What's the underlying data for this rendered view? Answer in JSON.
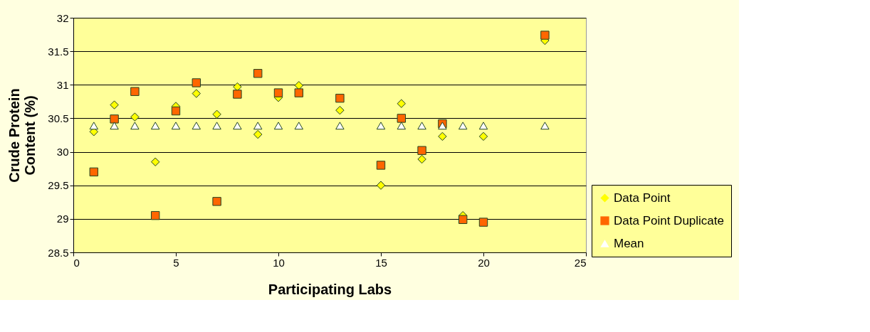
{
  "chart_data": {
    "type": "scatter",
    "xlabel": "Participating Labs",
    "ylabel": "Crude Protein Content (%)",
    "xlim": [
      0,
      25
    ],
    "xticks": [
      0,
      5,
      10,
      15,
      20,
      25
    ],
    "ylim": [
      28.5,
      32
    ],
    "yticks": [
      28.5,
      29,
      29.5,
      30,
      30.5,
      31,
      31.5,
      32
    ],
    "grid": "y",
    "legend": "bottom right",
    "series": [
      {
        "name": "Data Point",
        "color": "#ffff00",
        "marker": "diamond",
        "x": [
          1,
          2,
          3,
          4,
          5,
          6,
          7,
          8,
          9,
          10,
          11,
          13,
          15,
          16,
          17,
          18,
          19,
          20,
          23
        ],
        "values": [
          30.3,
          30.7,
          30.52,
          29.85,
          30.68,
          30.87,
          30.56,
          30.97,
          30.26,
          30.81,
          30.99,
          30.62,
          29.5,
          30.72,
          29.89,
          30.23,
          29.05,
          30.23,
          31.66
        ]
      },
      {
        "name": "Data Point Duplicate",
        "color": "#ff6600",
        "marker": "square",
        "x": [
          1,
          2,
          3,
          4,
          5,
          6,
          7,
          8,
          9,
          10,
          11,
          13,
          15,
          16,
          17,
          18,
          19,
          20,
          23
        ],
        "values": [
          29.7,
          30.49,
          30.9,
          29.05,
          30.61,
          31.03,
          29.26,
          30.86,
          31.17,
          30.88,
          30.88,
          30.8,
          29.8,
          30.5,
          30.02,
          30.42,
          28.99,
          28.95,
          31.74
        ]
      },
      {
        "name": "Mean",
        "color": "#ffffff",
        "marker": "triangle",
        "x": [
          1,
          2,
          3,
          4,
          5,
          6,
          7,
          8,
          9,
          10,
          11,
          13,
          15,
          16,
          17,
          18,
          19,
          20,
          23
        ],
        "values": [
          30.39,
          30.39,
          30.39,
          30.39,
          30.39,
          30.39,
          30.39,
          30.39,
          30.39,
          30.39,
          30.39,
          30.39,
          30.39,
          30.39,
          30.39,
          30.39,
          30.39,
          30.39,
          30.39
        ]
      }
    ]
  }
}
